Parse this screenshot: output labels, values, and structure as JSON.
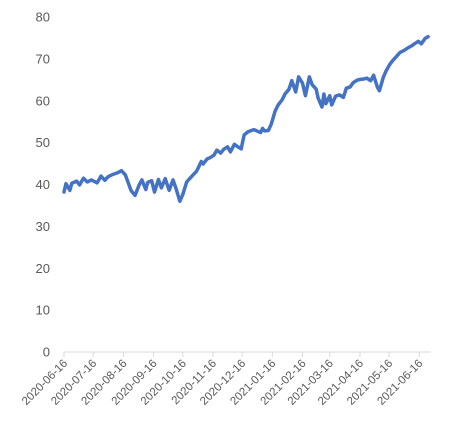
{
  "chart_data": {
    "type": "line",
    "title": "",
    "xlabel": "",
    "ylabel": "",
    "ylim": [
      0,
      80
    ],
    "yticks": [
      0,
      10,
      20,
      30,
      40,
      50,
      60,
      70,
      80
    ],
    "xticks": [
      "2020-06-16",
      "2020-07-16",
      "2020-08-16",
      "2020-09-16",
      "2020-10-16",
      "2020-11-16",
      "2020-12-16",
      "2021-01-16",
      "2021-02-16",
      "2021-03-16",
      "2021-04-16",
      "2021-05-16",
      "2021-06-16"
    ],
    "grid": false,
    "legend": "none",
    "line_color": "#4472C4",
    "series": [
      {
        "x": [
          "2020-06-16",
          "2020-06-18",
          "2020-06-22",
          "2020-06-24",
          "2020-06-29",
          "2020-07-02",
          "2020-07-06",
          "2020-07-10",
          "2020-07-14",
          "2020-07-20",
          "2020-07-24",
          "2020-07-28",
          "2020-07-31",
          "2020-08-04",
          "2020-08-10",
          "2020-08-14",
          "2020-08-18",
          "2020-08-24",
          "2020-08-28",
          "2020-09-01",
          "2020-09-04",
          "2020-09-08",
          "2020-09-10",
          "2020-09-14",
          "2020-09-17",
          "2020-09-21",
          "2020-09-24",
          "2020-09-28",
          "2020-10-02",
          "2020-10-06",
          "2020-10-09",
          "2020-10-13",
          "2020-10-16",
          "2020-10-20",
          "2020-10-23",
          "2020-10-27",
          "2020-10-30",
          "2020-11-02",
          "2020-11-04",
          "2020-11-06",
          "2020-11-10",
          "2020-11-13",
          "2020-11-17",
          "2020-11-20",
          "2020-11-24",
          "2020-11-27",
          "2020-12-01",
          "2020-12-04",
          "2020-12-08",
          "2020-12-11",
          "2020-12-15",
          "2020-12-18",
          "2020-12-22",
          "2020-12-28",
          "2021-01-04",
          "2021-01-06",
          "2021-01-08",
          "2021-01-12",
          "2021-01-15",
          "2021-01-19",
          "2021-01-22",
          "2021-01-26",
          "2021-01-29",
          "2021-02-02",
          "2021-02-05",
          "2021-02-09",
          "2021-02-12",
          "2021-02-16",
          "2021-02-19",
          "2021-02-23",
          "2021-02-26",
          "2021-03-02",
          "2021-03-04",
          "2021-03-08",
          "2021-03-10",
          "2021-03-12",
          "2021-03-16",
          "2021-03-18",
          "2021-03-22",
          "2021-03-26",
          "2021-03-30",
          "2021-04-02",
          "2021-04-06",
          "2021-04-09",
          "2021-04-13",
          "2021-04-16",
          "2021-04-20",
          "2021-04-23",
          "2021-04-27",
          "2021-04-30",
          "2021-05-04",
          "2021-05-06",
          "2021-05-10",
          "2021-05-13",
          "2021-05-17",
          "2021-05-20",
          "2021-05-24",
          "2021-05-27",
          "2021-06-01",
          "2021-06-04",
          "2021-06-08",
          "2021-06-11",
          "2021-06-15",
          "2021-06-18",
          "2021-06-22",
          "2021-06-25"
        ],
        "y": [
          38.2,
          40.2,
          38.6,
          40.3,
          40.8,
          39.9,
          41.5,
          40.6,
          41.1,
          40.4,
          42.0,
          41.0,
          41.8,
          42.3,
          42.8,
          43.3,
          42.3,
          38.5,
          37.4,
          39.8,
          41.1,
          38.8,
          40.5,
          40.9,
          38.2,
          41.2,
          39.2,
          41.4,
          38.6,
          41.1,
          39.1,
          36.0,
          37.6,
          40.6,
          41.4,
          42.4,
          43.1,
          44.5,
          45.5,
          44.9,
          46.1,
          46.4,
          47.0,
          48.2,
          47.5,
          48.4,
          49.0,
          47.8,
          49.6,
          49.1,
          48.5,
          51.8,
          52.6,
          53.1,
          52.4,
          53.4,
          52.8,
          52.9,
          54.5,
          57.6,
          59.0,
          60.2,
          61.6,
          62.7,
          64.8,
          62.1,
          65.7,
          64.2,
          61.2,
          65.7,
          63.8,
          62.8,
          60.7,
          58.5,
          61.6,
          59.3,
          61.2,
          59.0,
          61.1,
          61.4,
          60.8,
          63.0,
          63.3,
          64.3,
          64.9,
          65.1,
          65.2,
          65.4,
          64.8,
          66.1,
          63.2,
          62.4,
          65.6,
          67.2,
          68.8,
          69.7,
          70.7,
          71.5,
          72.1,
          72.6,
          73.1,
          73.6,
          74.2,
          73.6,
          74.9,
          75.3
        ]
      }
    ]
  }
}
